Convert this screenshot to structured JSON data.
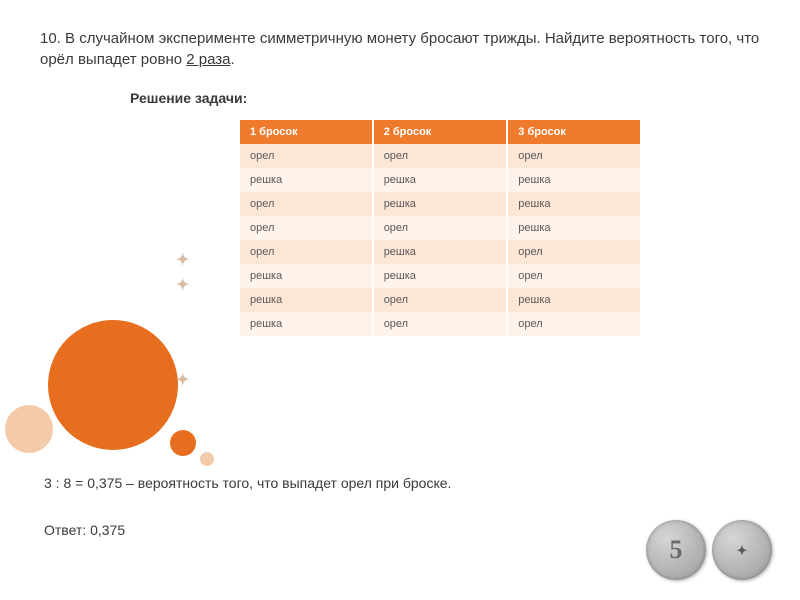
{
  "problem": {
    "number": "10.",
    "text_pre": "В случайном эксперименте симметричную монету бросают трижды. Найдите вероятность того, что орёл выпадет ровно ",
    "underlined": "2 раза",
    "period": "."
  },
  "solution_title": "Решение задачи:",
  "table": {
    "columns": [
      "1 бросок",
      "2 бросок",
      "3 бросок"
    ],
    "rows": [
      [
        "орел",
        "орел",
        "орел"
      ],
      [
        "решка",
        "решка",
        "решка"
      ],
      [
        "орел",
        "решка",
        "решка"
      ],
      [
        "орел",
        "орел",
        "решка"
      ],
      [
        "орел",
        "решка",
        "орел"
      ],
      [
        "решка",
        "решка",
        "орел"
      ],
      [
        "решка",
        "орел",
        "решка"
      ],
      [
        "решка",
        "орел",
        "орел"
      ]
    ]
  },
  "calc": "3 : 8 = 0,375 – вероятность того, что выпадет орел при броске.",
  "answer": "Ответ: 0,375",
  "coins": {
    "five": "5",
    "eagle": "✦"
  },
  "colors": {
    "accent": "#e86e1f",
    "header_bg": "#f07a2c",
    "row_odd": "#fce6d6",
    "row_even": "#fdf3ea",
    "light_circle": "#f4cbaa",
    "text": "#3a3a3a"
  }
}
